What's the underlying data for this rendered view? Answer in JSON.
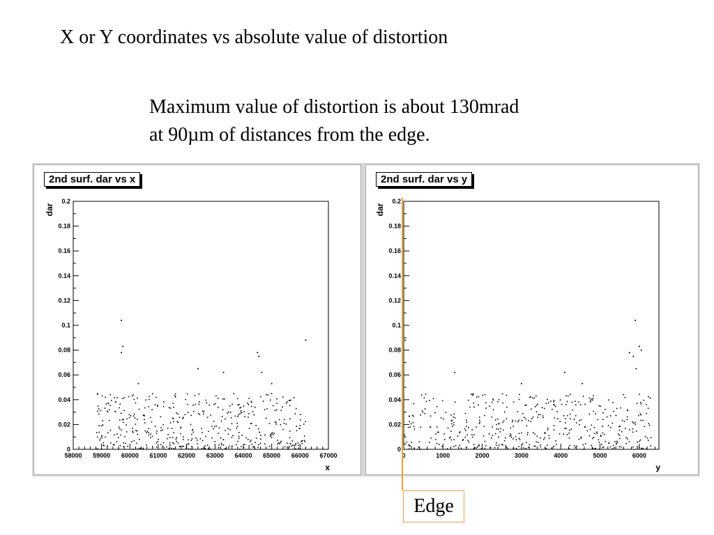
{
  "slide": {
    "title": "X or Y coordinates vs absolute value of distortion",
    "note_line1": "Maximum value of distortion is about 130mrad",
    "note_line2": "at 90µm of distances from the edge.",
    "edge_label": "Edge"
  },
  "colors": {
    "edge": "#f0a030",
    "canvas": "#d8d8d8",
    "points": "#000000"
  },
  "chart_data": [
    {
      "type": "scatter",
      "title": "2nd surf. dar vs x",
      "xlabel": "x",
      "ylabel": "dar",
      "xlim": [
        58000,
        67000
      ],
      "ylim": [
        0,
        0.2
      ],
      "xticks": [
        "58000",
        "59000",
        "60000",
        "61000",
        "62000",
        "63000",
        "64000",
        "65000",
        "66000",
        "67000"
      ],
      "yticks": [
        "0",
        "0.02",
        "0.04",
        "0.06",
        "0.08",
        "0.1",
        "0.12",
        "0.14",
        "0.16",
        "0.18",
        "0.2"
      ],
      "grid": false,
      "points_note": "x values 58800-66200, dar mostly 0-0.045",
      "outliers": [
        [
          59700,
          0.104
        ],
        [
          59750,
          0.083
        ],
        [
          59700,
          0.078
        ],
        [
          60300,
          0.053
        ],
        [
          62400,
          0.065
        ],
        [
          63300,
          0.062
        ],
        [
          64500,
          0.078
        ],
        [
          64550,
          0.075
        ],
        [
          64650,
          0.062
        ],
        [
          65000,
          0.053
        ],
        [
          66200,
          0.088
        ]
      ],
      "n_points": 460,
      "cluster": {
        "x_range": [
          58800,
          66200
        ],
        "y_range": [
          0,
          0.045
        ],
        "seed": 7
      }
    },
    {
      "type": "scatter",
      "title": "2nd surf. dar vs y",
      "xlabel": "y",
      "ylabel": "dar",
      "xlim": [
        0,
        6500
      ],
      "ylim": [
        0,
        0.2
      ],
      "xticks": [
        "0",
        "1000",
        "2000",
        "3000",
        "4000",
        "5000",
        "6000"
      ],
      "yticks": [
        "0",
        "0.02",
        "0.04",
        "0.06",
        "0.08",
        "0.1",
        "0.12",
        "0.14",
        "0.16",
        "0.18",
        "0.2"
      ],
      "grid": false,
      "outliers": [
        [
          40,
          0.088
        ],
        [
          1300,
          0.062
        ],
        [
          3000,
          0.053
        ],
        [
          4100,
          0.062
        ],
        [
          4550,
          0.053
        ],
        [
          5750,
          0.078
        ],
        [
          5850,
          0.075
        ],
        [
          5900,
          0.104
        ],
        [
          5920,
          0.065
        ],
        [
          6000,
          0.083
        ],
        [
          6050,
          0.08
        ]
      ],
      "n_points": 460,
      "cluster": {
        "x_range": [
          0,
          6300
        ],
        "y_range": [
          0,
          0.045
        ],
        "seed": 11
      }
    }
  ]
}
